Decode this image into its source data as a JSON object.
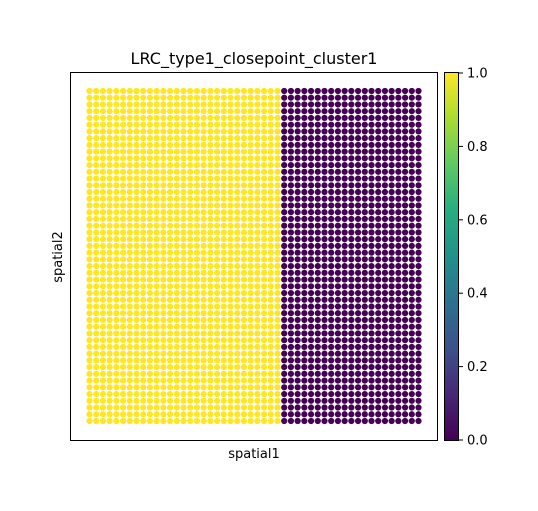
{
  "chart_data": {
    "type": "scatter",
    "title": "LRC_type1_closepoint_cluster1",
    "xlabel": "spatial1",
    "ylabel": "spatial2",
    "grid": false,
    "x_ticks_shown": false,
    "y_ticks_shown": false,
    "point_grid": {
      "columns": 50,
      "rows": 50,
      "description_of_values": "columns 1-29 have value 1.0, columns 30-50 have value 0.0"
    },
    "value_by_column_range": [
      {
        "columns": [
          1,
          29
        ],
        "value": 1.0
      },
      {
        "columns": [
          30,
          50
        ],
        "value": 0.0
      }
    ],
    "colorbar": {
      "colormap": "viridis",
      "range": [
        0.0,
        1.0
      ],
      "ticks": [
        "0.0",
        "0.2",
        "0.4",
        "0.6",
        "0.8",
        "1.0"
      ],
      "colors": [
        "#440154",
        "#3b528b",
        "#21918c",
        "#5ec962",
        "#fde725"
      ]
    }
  }
}
